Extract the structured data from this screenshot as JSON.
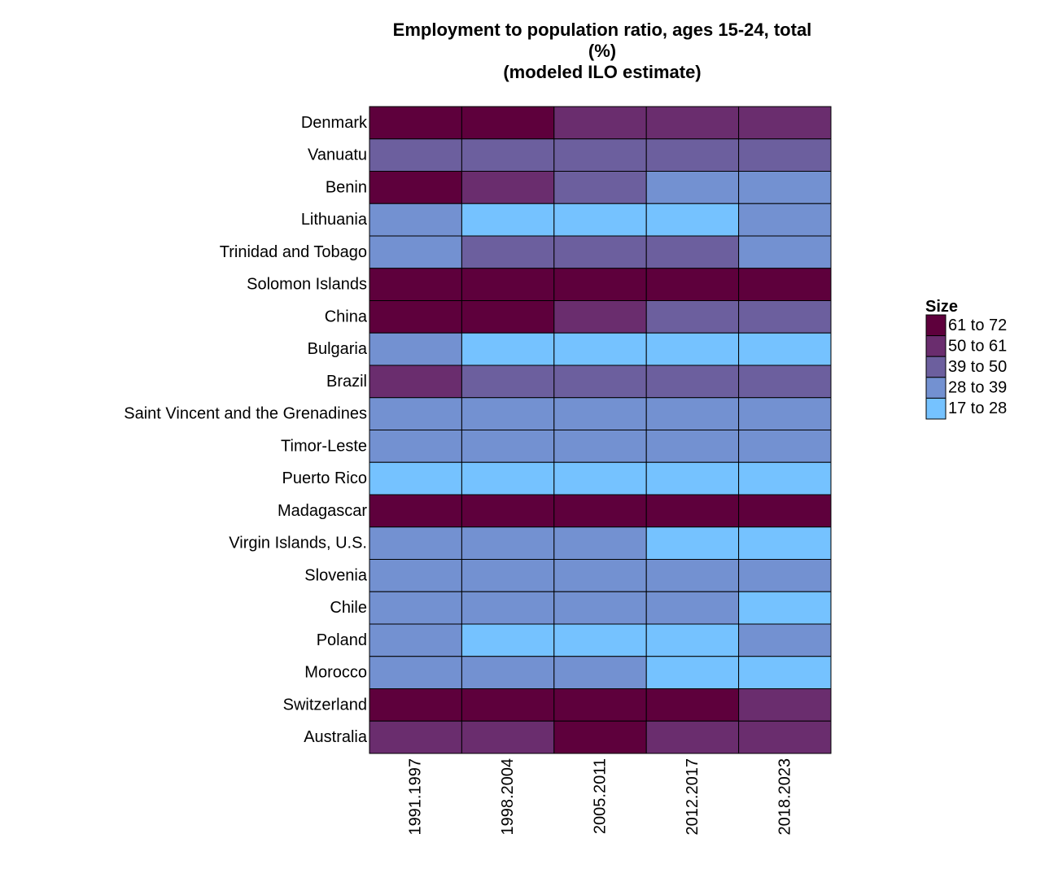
{
  "chart_data": {
    "type": "heatmap",
    "title_lines": [
      "Employment to population ratio, ages 15-24, total",
      "(%)",
      "(modeled ILO estimate)"
    ],
    "x": [
      "1991.1997",
      "1998.2004",
      "2005.2011",
      "2012.2017",
      "2018.2023"
    ],
    "y": [
      "Denmark",
      "Vanuatu",
      "Benin",
      "Lithuania",
      "Trinidad and Tobago",
      "Solomon Islands",
      "China",
      "Bulgaria",
      "Brazil",
      "Saint Vincent and the Grenadines",
      "Timor-Leste",
      "Puerto Rico",
      "Madagascar",
      "Virgin Islands, U.S.",
      "Slovenia",
      "Chile",
      "Poland",
      "Morocco",
      "Switzerland",
      "Australia"
    ],
    "bins": [
      {
        "label": "61 to 72",
        "color": "#5e003c"
      },
      {
        "label": "50 to 61",
        "color": "#6a2d6e"
      },
      {
        "label": "39 to 50",
        "color": "#6c5f9e"
      },
      {
        "label": "28 to 39",
        "color": "#7391d1"
      },
      {
        "label": "17 to 28",
        "color": "#75c2ff"
      }
    ],
    "values": [
      [
        "61 to 72",
        "61 to 72",
        "50 to 61",
        "50 to 61",
        "50 to 61"
      ],
      [
        "39 to 50",
        "39 to 50",
        "39 to 50",
        "39 to 50",
        "39 to 50"
      ],
      [
        "61 to 72",
        "50 to 61",
        "39 to 50",
        "28 to 39",
        "28 to 39"
      ],
      [
        "28 to 39",
        "17 to 28",
        "17 to 28",
        "17 to 28",
        "28 to 39"
      ],
      [
        "28 to 39",
        "39 to 50",
        "39 to 50",
        "39 to 50",
        "28 to 39"
      ],
      [
        "61 to 72",
        "61 to 72",
        "61 to 72",
        "61 to 72",
        "61 to 72"
      ],
      [
        "61 to 72",
        "61 to 72",
        "50 to 61",
        "39 to 50",
        "39 to 50"
      ],
      [
        "28 to 39",
        "17 to 28",
        "17 to 28",
        "17 to 28",
        "17 to 28"
      ],
      [
        "50 to 61",
        "39 to 50",
        "39 to 50",
        "39 to 50",
        "39 to 50"
      ],
      [
        "28 to 39",
        "28 to 39",
        "28 to 39",
        "28 to 39",
        "28 to 39"
      ],
      [
        "28 to 39",
        "28 to 39",
        "28 to 39",
        "28 to 39",
        "28 to 39"
      ],
      [
        "17 to 28",
        "17 to 28",
        "17 to 28",
        "17 to 28",
        "17 to 28"
      ],
      [
        "61 to 72",
        "61 to 72",
        "61 to 72",
        "61 to 72",
        "61 to 72"
      ],
      [
        "28 to 39",
        "28 to 39",
        "28 to 39",
        "17 to 28",
        "17 to 28"
      ],
      [
        "28 to 39",
        "28 to 39",
        "28 to 39",
        "28 to 39",
        "28 to 39"
      ],
      [
        "28 to 39",
        "28 to 39",
        "28 to 39",
        "28 to 39",
        "17 to 28"
      ],
      [
        "28 to 39",
        "17 to 28",
        "17 to 28",
        "17 to 28",
        "28 to 39"
      ],
      [
        "28 to 39",
        "28 to 39",
        "28 to 39",
        "17 to 28",
        "17 to 28"
      ],
      [
        "61 to 72",
        "61 to 72",
        "61 to 72",
        "61 to 72",
        "50 to 61"
      ],
      [
        "50 to 61",
        "50 to 61",
        "61 to 72",
        "50 to 61",
        "50 to 61"
      ]
    ],
    "legend": {
      "title": "Size",
      "position": "right"
    },
    "grid": false
  }
}
